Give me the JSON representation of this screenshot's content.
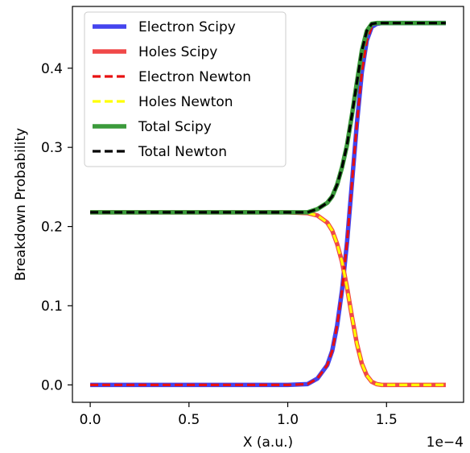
{
  "chart_data": {
    "type": "line",
    "xlabel": "X (a.u.)",
    "ylabel": "Breakdown Probability",
    "x_offset_text": "1e−4",
    "xlim": [
      -0.09,
      1.89
    ],
    "ylim": [
      -0.022,
      0.478
    ],
    "xticks": [
      0.0,
      0.5,
      1.0,
      1.5
    ],
    "xtick_labels": [
      "0.0",
      "0.5",
      "1.0",
      "1.5"
    ],
    "yticks": [
      0.0,
      0.1,
      0.2,
      0.3,
      0.4
    ],
    "ytick_labels": [
      "0.0",
      "0.1",
      "0.2",
      "0.3",
      "0.4"
    ],
    "grid": false,
    "legend_position": "top-left",
    "x": [
      0.0,
      0.2,
      0.4,
      0.6,
      0.8,
      1.0,
      1.1,
      1.15,
      1.2,
      1.225,
      1.25,
      1.275,
      1.3,
      1.325,
      1.35,
      1.375,
      1.4,
      1.425,
      1.45,
      1.475,
      1.5,
      1.6,
      1.7,
      1.8
    ],
    "series": [
      {
        "name": "Electron Scipy",
        "color": "#4444ee",
        "style": "solid",
        "y": [
          0.0,
          0.0,
          0.0,
          0.0,
          0.0,
          0.0,
          0.001,
          0.008,
          0.025,
          0.043,
          0.075,
          0.12,
          0.18,
          0.255,
          0.33,
          0.395,
          0.435,
          0.452,
          0.456,
          0.457,
          0.457,
          0.457,
          0.457,
          0.457
        ]
      },
      {
        "name": "Holes Scipy",
        "color": "#f04848",
        "style": "solid",
        "y": [
          0.218,
          0.218,
          0.218,
          0.218,
          0.218,
          0.218,
          0.217,
          0.214,
          0.205,
          0.195,
          0.178,
          0.155,
          0.123,
          0.086,
          0.052,
          0.027,
          0.012,
          0.004,
          0.001,
          0.0,
          0.0,
          0.0,
          0.0,
          0.0
        ]
      },
      {
        "name": "Electron Newton",
        "color": "#e81010",
        "style": "dashed",
        "y": [
          0.0,
          0.0,
          0.0,
          0.0,
          0.0,
          0.0,
          0.001,
          0.008,
          0.025,
          0.043,
          0.075,
          0.12,
          0.18,
          0.255,
          0.33,
          0.395,
          0.435,
          0.452,
          0.456,
          0.457,
          0.457,
          0.457,
          0.457,
          0.457
        ]
      },
      {
        "name": "Holes Newton",
        "color": "#ffff00",
        "style": "dashed",
        "y": [
          0.218,
          0.218,
          0.218,
          0.218,
          0.218,
          0.218,
          0.217,
          0.214,
          0.205,
          0.195,
          0.178,
          0.155,
          0.123,
          0.086,
          0.052,
          0.027,
          0.012,
          0.004,
          0.001,
          0.0,
          0.0,
          0.0,
          0.0,
          0.0
        ]
      },
      {
        "name": "Total Scipy",
        "color": "#3a9a3a",
        "style": "solid",
        "y": [
          0.218,
          0.218,
          0.218,
          0.218,
          0.218,
          0.218,
          0.218,
          0.222,
          0.23,
          0.238,
          0.253,
          0.275,
          0.303,
          0.341,
          0.382,
          0.422,
          0.447,
          0.456,
          0.457,
          0.457,
          0.457,
          0.457,
          0.457,
          0.457
        ]
      },
      {
        "name": "Total Newton",
        "color": "#000000",
        "style": "dashed",
        "y": [
          0.218,
          0.218,
          0.218,
          0.218,
          0.218,
          0.218,
          0.218,
          0.222,
          0.23,
          0.238,
          0.253,
          0.275,
          0.303,
          0.341,
          0.382,
          0.422,
          0.447,
          0.456,
          0.457,
          0.457,
          0.457,
          0.457,
          0.457,
          0.457
        ]
      }
    ]
  }
}
